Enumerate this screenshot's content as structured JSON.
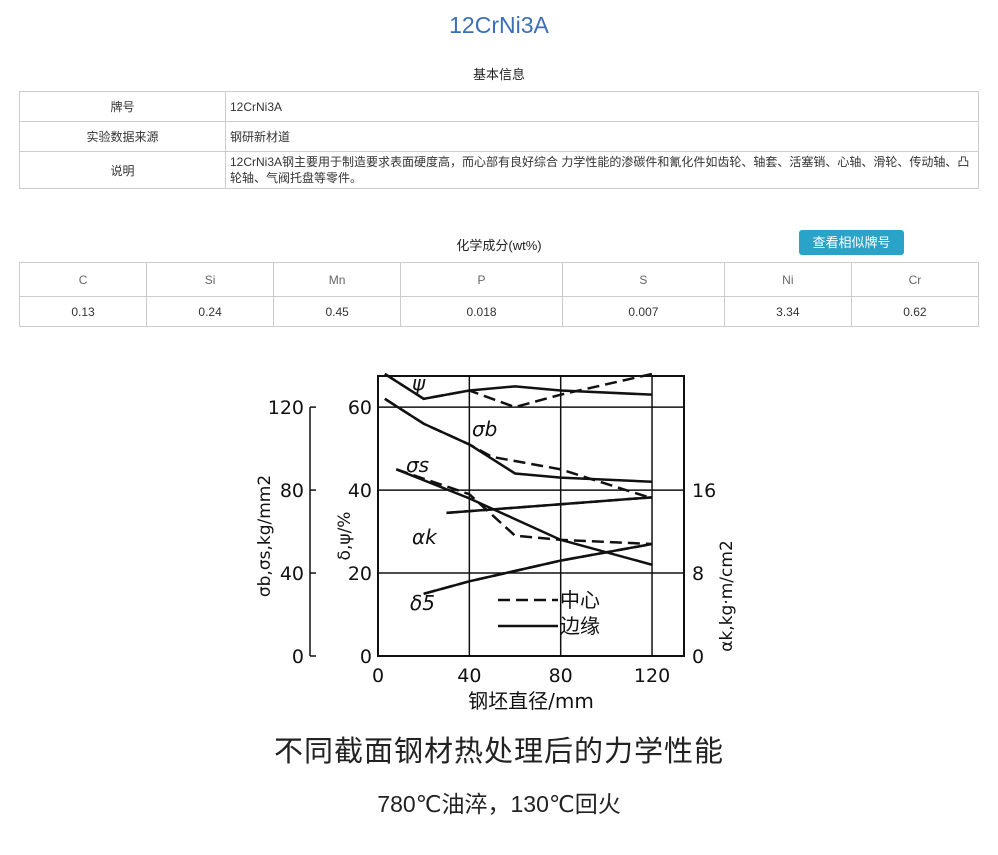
{
  "title": "12CrNi3A",
  "basic_info": {
    "section_title": "基本信息",
    "rows": [
      {
        "key": "牌号",
        "value": "12CrNi3A"
      },
      {
        "key": "实验数据来源",
        "value": "钢研新材道"
      },
      {
        "key": "说明",
        "value": "12CrNi3A钢主要用于制造要求表面硬度高，而心部有良好综合 力学性能的渗碳件和氰化件如齿轮、轴套、活塞销、心轴、滑轮、传动轴、凸轮轴、气阀托盘等零件。"
      }
    ]
  },
  "chemistry": {
    "section_title": "化学成分(wt%)",
    "button_label": "查看相似牌号",
    "headers": [
      "C",
      "Si",
      "Mn",
      "P",
      "S",
      "Ni",
      "Cr"
    ],
    "values": [
      "0.13",
      "0.24",
      "0.45",
      "0.018",
      "0.007",
      "3.34",
      "0.62"
    ]
  },
  "figure": {
    "caption": "不同截面钢材热处理后的力学性能",
    "subcaption": "780℃油淬，130℃回火",
    "chart_data": {
      "type": "line",
      "xlabel": "钢坯直径/mm",
      "x_ticks": [
        "0",
        "40",
        "80",
        "120"
      ],
      "xlim": [
        0,
        120
      ],
      "left_outer_axis": {
        "label": "σb,σs,kg/mm2",
        "ticks": [
          "0",
          "40",
          "80",
          "120"
        ],
        "range": [
          0,
          120
        ]
      },
      "left_inner_axis": {
        "label": "δ,ψ/%",
        "ticks": [
          "0",
          "20",
          "40",
          "60"
        ],
        "range": [
          0,
          60
        ]
      },
      "right_axis": {
        "label": "αk,kg·m/cm2",
        "ticks": [
          "0",
          "8",
          "16"
        ],
        "range": [
          0,
          24
        ]
      },
      "legend": [
        {
          "style": "dashed",
          "label": "——中心"
        },
        {
          "style": "solid",
          "label": "———边缘"
        }
      ],
      "series_labels": {
        "psi": "ψ",
        "sigma_b": "σb",
        "sigma_s": "σs",
        "alpha_k": "αk",
        "delta5": "δ5"
      },
      "series": [
        {
          "id": "psi",
          "axis": "left_inner_axis",
          "center": {
            "x": [
              3,
              20,
              40,
              60,
              80,
              120
            ],
            "y": [
              68,
              62,
              64,
              60,
              63,
              68
            ]
          },
          "edge": {
            "x": [
              3,
              20,
              40,
              60,
              80,
              120
            ],
            "y": [
              68,
              62,
              64,
              65,
              64,
              63
            ]
          }
        },
        {
          "id": "sigma_b",
          "axis": "left_inner_axis",
          "center": {
            "x": [
              3,
              20,
              40,
              50,
              80,
              120
            ],
            "y": [
              62,
              56,
              51,
              48,
              45,
              38
            ]
          },
          "edge": {
            "x": [
              3,
              20,
              40,
              60,
              80,
              120
            ],
            "y": [
              62,
              56,
              51,
              44,
              43,
              42
            ]
          }
        },
        {
          "id": "sigma_s",
          "axis": "left_inner_axis",
          "center": {
            "x": [
              8,
              40,
              60,
              80,
              120
            ],
            "y": [
              45,
              39,
              29,
              28,
              27
            ]
          },
          "edge": {
            "x": [
              8,
              40,
              60,
              80,
              120
            ],
            "y": [
              45,
              38,
              33,
              28,
              22
            ]
          }
        },
        {
          "id": "alpha_k",
          "axis": "right_axis",
          "center": {
            "x": [
              30,
              120
            ],
            "y": [
              13.8,
              15.3
            ]
          },
          "edge": {
            "x": [
              30,
              120
            ],
            "y": [
              13.8,
              15.3
            ]
          }
        },
        {
          "id": "delta5",
          "axis": "left_inner_axis",
          "center": {
            "x": [
              20,
              40,
              80,
              120
            ],
            "y": [
              15,
              18,
              23,
              27
            ]
          },
          "edge": {
            "x": [
              20,
              40,
              80,
              120
            ],
            "y": [
              15,
              18,
              23,
              27
            ]
          }
        }
      ]
    }
  }
}
